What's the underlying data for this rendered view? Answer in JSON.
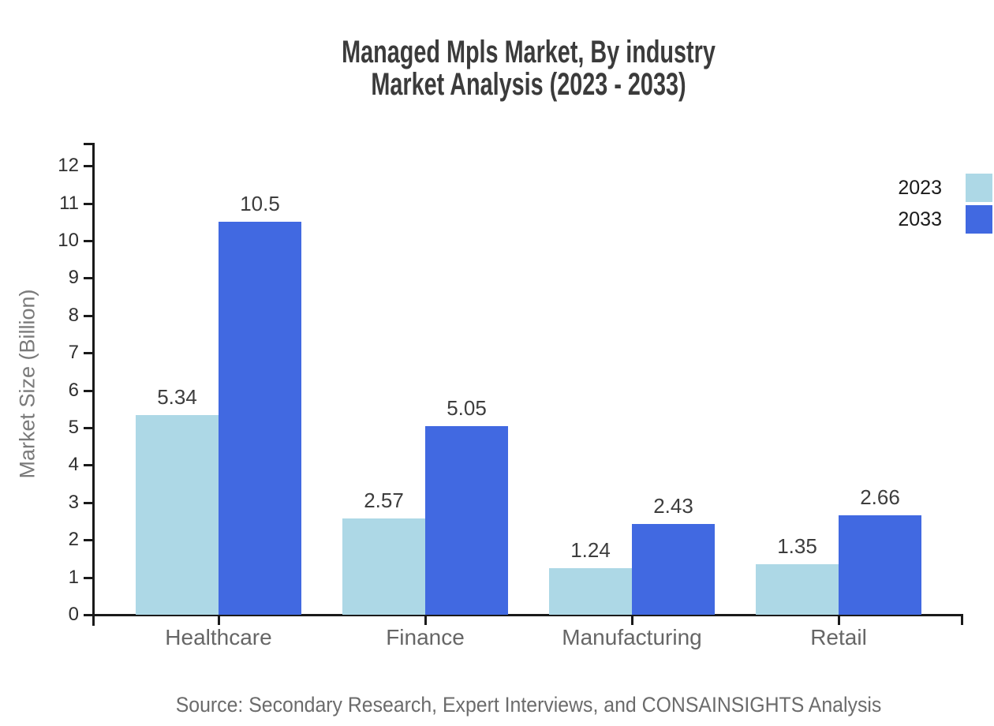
{
  "title": {
    "line1": "Managed Mpls Market, By industry",
    "line2": "Market Analysis (2023 - 2033)"
  },
  "source": "Source: Secondary Research, Expert Interviews, and CONSAINSIGHTS Analysis",
  "chart_data": {
    "type": "bar",
    "title": "Managed Mpls Market, By industry Market Analysis (2023 - 2033)",
    "categories": [
      "Healthcare",
      "Finance",
      "Manufacturing",
      "Retail"
    ],
    "series": [
      {
        "name": "2023",
        "color": "#ADD8E6",
        "values": [
          5.34,
          2.57,
          1.24,
          1.35
        ]
      },
      {
        "name": "2033",
        "color": "#4169E1",
        "values": [
          10.5,
          5.05,
          2.43,
          2.66
        ]
      }
    ],
    "xlabel": "",
    "ylabel": "Market Size (Billion)",
    "ylim": [
      0,
      12
    ],
    "ytick_step": 1,
    "grid": false,
    "legend_position": "top-right",
    "value_labels_shown": true,
    "axis_color": "#1a1a1a"
  }
}
